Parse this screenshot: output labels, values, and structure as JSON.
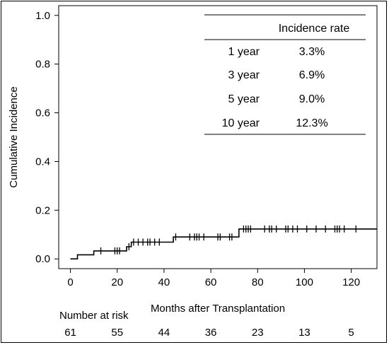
{
  "chart_data": {
    "type": "line",
    "title": "",
    "xlabel": "Months after Transplantation",
    "ylabel": "Cumulative Incidence",
    "xlim": [
      -5,
      131
    ],
    "ylim": [
      -0.04,
      1.04
    ],
    "xticks": [
      0,
      20,
      40,
      60,
      80,
      100,
      120
    ],
    "yticks": [
      "0.0",
      "0.2",
      "0.4",
      "0.6",
      "0.8",
      "1.0"
    ],
    "grid": false,
    "step_curve": [
      [
        0,
        0.0
      ],
      [
        3,
        0.0
      ],
      [
        3,
        0.017
      ],
      [
        10,
        0.017
      ],
      [
        10,
        0.033
      ],
      [
        24,
        0.033
      ],
      [
        24,
        0.05
      ],
      [
        26,
        0.05
      ],
      [
        26,
        0.069
      ],
      [
        44,
        0.069
      ],
      [
        44,
        0.09
      ],
      [
        72,
        0.09
      ],
      [
        72,
        0.123
      ],
      [
        131,
        0.123
      ]
    ],
    "censor_marks": [
      [
        13,
        0.033
      ],
      [
        19,
        0.033
      ],
      [
        20,
        0.033
      ],
      [
        21,
        0.033
      ],
      [
        25,
        0.05
      ],
      [
        27,
        0.069
      ],
      [
        29,
        0.069
      ],
      [
        31,
        0.069
      ],
      [
        33,
        0.069
      ],
      [
        34,
        0.069
      ],
      [
        36,
        0.069
      ],
      [
        38,
        0.069
      ],
      [
        45,
        0.09
      ],
      [
        51,
        0.09
      ],
      [
        53,
        0.09
      ],
      [
        54,
        0.09
      ],
      [
        55,
        0.09
      ],
      [
        57,
        0.09
      ],
      [
        63,
        0.09
      ],
      [
        64,
        0.09
      ],
      [
        68,
        0.09
      ],
      [
        69,
        0.09
      ],
      [
        74,
        0.123
      ],
      [
        75,
        0.123
      ],
      [
        76,
        0.123
      ],
      [
        77,
        0.123
      ],
      [
        83,
        0.123
      ],
      [
        85,
        0.123
      ],
      [
        86,
        0.123
      ],
      [
        88,
        0.123
      ],
      [
        92,
        0.123
      ],
      [
        93,
        0.123
      ],
      [
        95,
        0.123
      ],
      [
        97,
        0.123
      ],
      [
        101,
        0.123
      ],
      [
        105,
        0.123
      ],
      [
        109,
        0.123
      ],
      [
        113,
        0.123
      ],
      [
        114,
        0.123
      ],
      [
        115,
        0.123
      ],
      [
        117,
        0.123
      ],
      [
        122,
        0.123
      ]
    ]
  },
  "incidence_table": {
    "header": "Incidence rate",
    "rows": [
      {
        "label": "1 year",
        "value": "3.3%"
      },
      {
        "label": "3 year",
        "value": "6.9%"
      },
      {
        "label": "5 year",
        "value": "9.0%"
      },
      {
        "label": "10 year",
        "value": "12.3%"
      }
    ]
  },
  "risk_table": {
    "title": "Number at risk",
    "values": [
      "61",
      "55",
      "44",
      "36",
      "23",
      "13",
      "5"
    ]
  }
}
